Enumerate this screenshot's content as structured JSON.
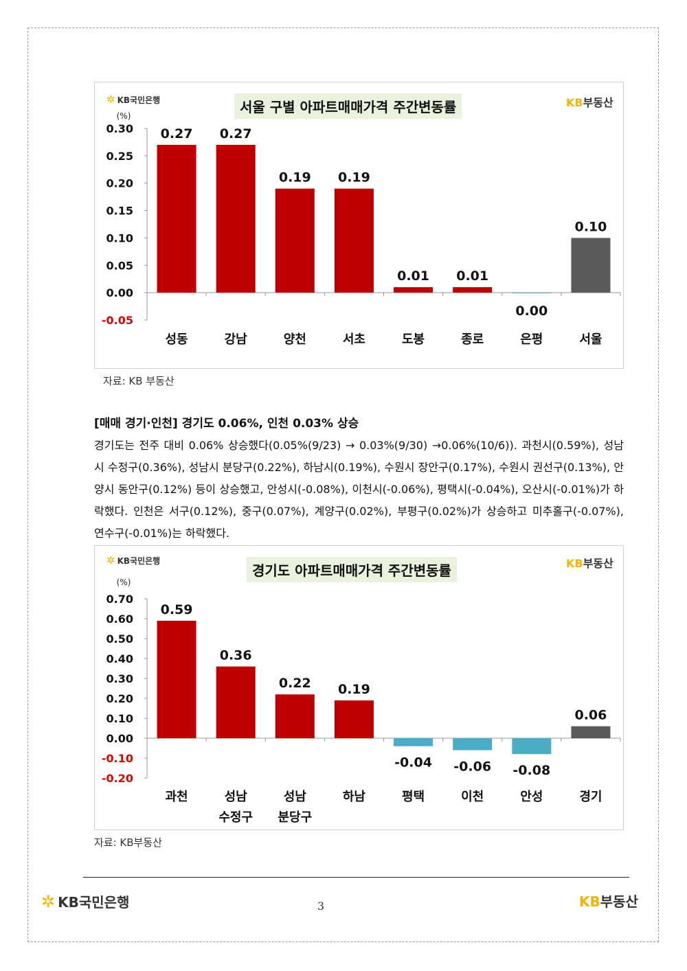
{
  "bank_name": "KB국민은행",
  "brand": {
    "kb": "KB",
    "rest": "부동산"
  },
  "chart_data": [
    {
      "type": "bar",
      "title": "서울 구별 아파트매매가격 주간변동률",
      "unit": "(%)",
      "categories": [
        [
          "성동"
        ],
        [
          "강남"
        ],
        [
          "양천"
        ],
        [
          "서초"
        ],
        [
          "도봉"
        ],
        [
          "종로"
        ],
        [
          "은평"
        ],
        [
          "서울"
        ]
      ],
      "values": [
        0.27,
        0.27,
        0.19,
        0.19,
        0.01,
        0.01,
        0.0,
        0.1
      ],
      "value_labels": [
        "0.27",
        "0.27",
        "0.19",
        "0.19",
        "0.01",
        "0.01",
        "0.00",
        "0.10"
      ],
      "yticks": [
        "0.30",
        "0.25",
        "0.20",
        "0.15",
        "0.10",
        "0.05",
        "0.00",
        "-0.05"
      ],
      "ylim": [
        -0.05,
        0.3
      ],
      "colors": [
        "#c00000",
        "#c00000",
        "#c00000",
        "#c00000",
        "#c00000",
        "#c00000",
        "#4bacc6",
        "#595959"
      ],
      "source": "자료: KB 부동산"
    },
    {
      "type": "bar",
      "title": "경기도 아파트매매가격 주간변동률",
      "unit": "(%)",
      "categories": [
        [
          "과천"
        ],
        [
          "성남",
          "수정구"
        ],
        [
          "성남",
          "분당구"
        ],
        [
          "하남"
        ],
        [
          "평택"
        ],
        [
          "이천"
        ],
        [
          "안성"
        ],
        [
          "경기"
        ]
      ],
      "values": [
        0.59,
        0.36,
        0.22,
        0.19,
        -0.04,
        -0.06,
        -0.08,
        0.06
      ],
      "value_labels": [
        "0.59",
        "0.36",
        "0.22",
        "0.19",
        "-0.04",
        "-0.06",
        "-0.08",
        "0.06"
      ],
      "yticks": [
        "0.70",
        "0.60",
        "0.50",
        "0.40",
        "0.30",
        "0.20",
        "0.10",
        "0.00",
        "-0.10",
        "-0.20"
      ],
      "ylim": [
        -0.2,
        0.7
      ],
      "colors": [
        "#c00000",
        "#c00000",
        "#c00000",
        "#c00000",
        "#4bacc6",
        "#4bacc6",
        "#4bacc6",
        "#595959"
      ],
      "source": "자료: KB부동산"
    }
  ],
  "section": {
    "heading": "[매매 경기·인천] 경기도 0.06%, 인천 0.03% 상승",
    "body": "경기도는 전주 대비 0.06% 상승했다(0.05%(9/23) → 0.03%(9/30) →0.06%(10/6)). 과천시(0.59%), 성남시 수정구(0.36%), 성남시 분당구(0.22%), 하남시(0.19%), 수원시 장안구(0.17%), 수원시 권선구(0.13%), 안양시 동안구(0.12%) 등이 상승했고, 안성시(-0.08%), 이천시(-0.06%), 평택시(-0.04%), 오산시(-0.01%)가 하락했다. 인천은 서구(0.12%), 중구(0.07%), 계양구(0.02%), 부평구(0.02%)가 상승하고 미추홀구(-0.07%), 연수구(-0.01%)는 하락했다."
  },
  "page_number": "3"
}
